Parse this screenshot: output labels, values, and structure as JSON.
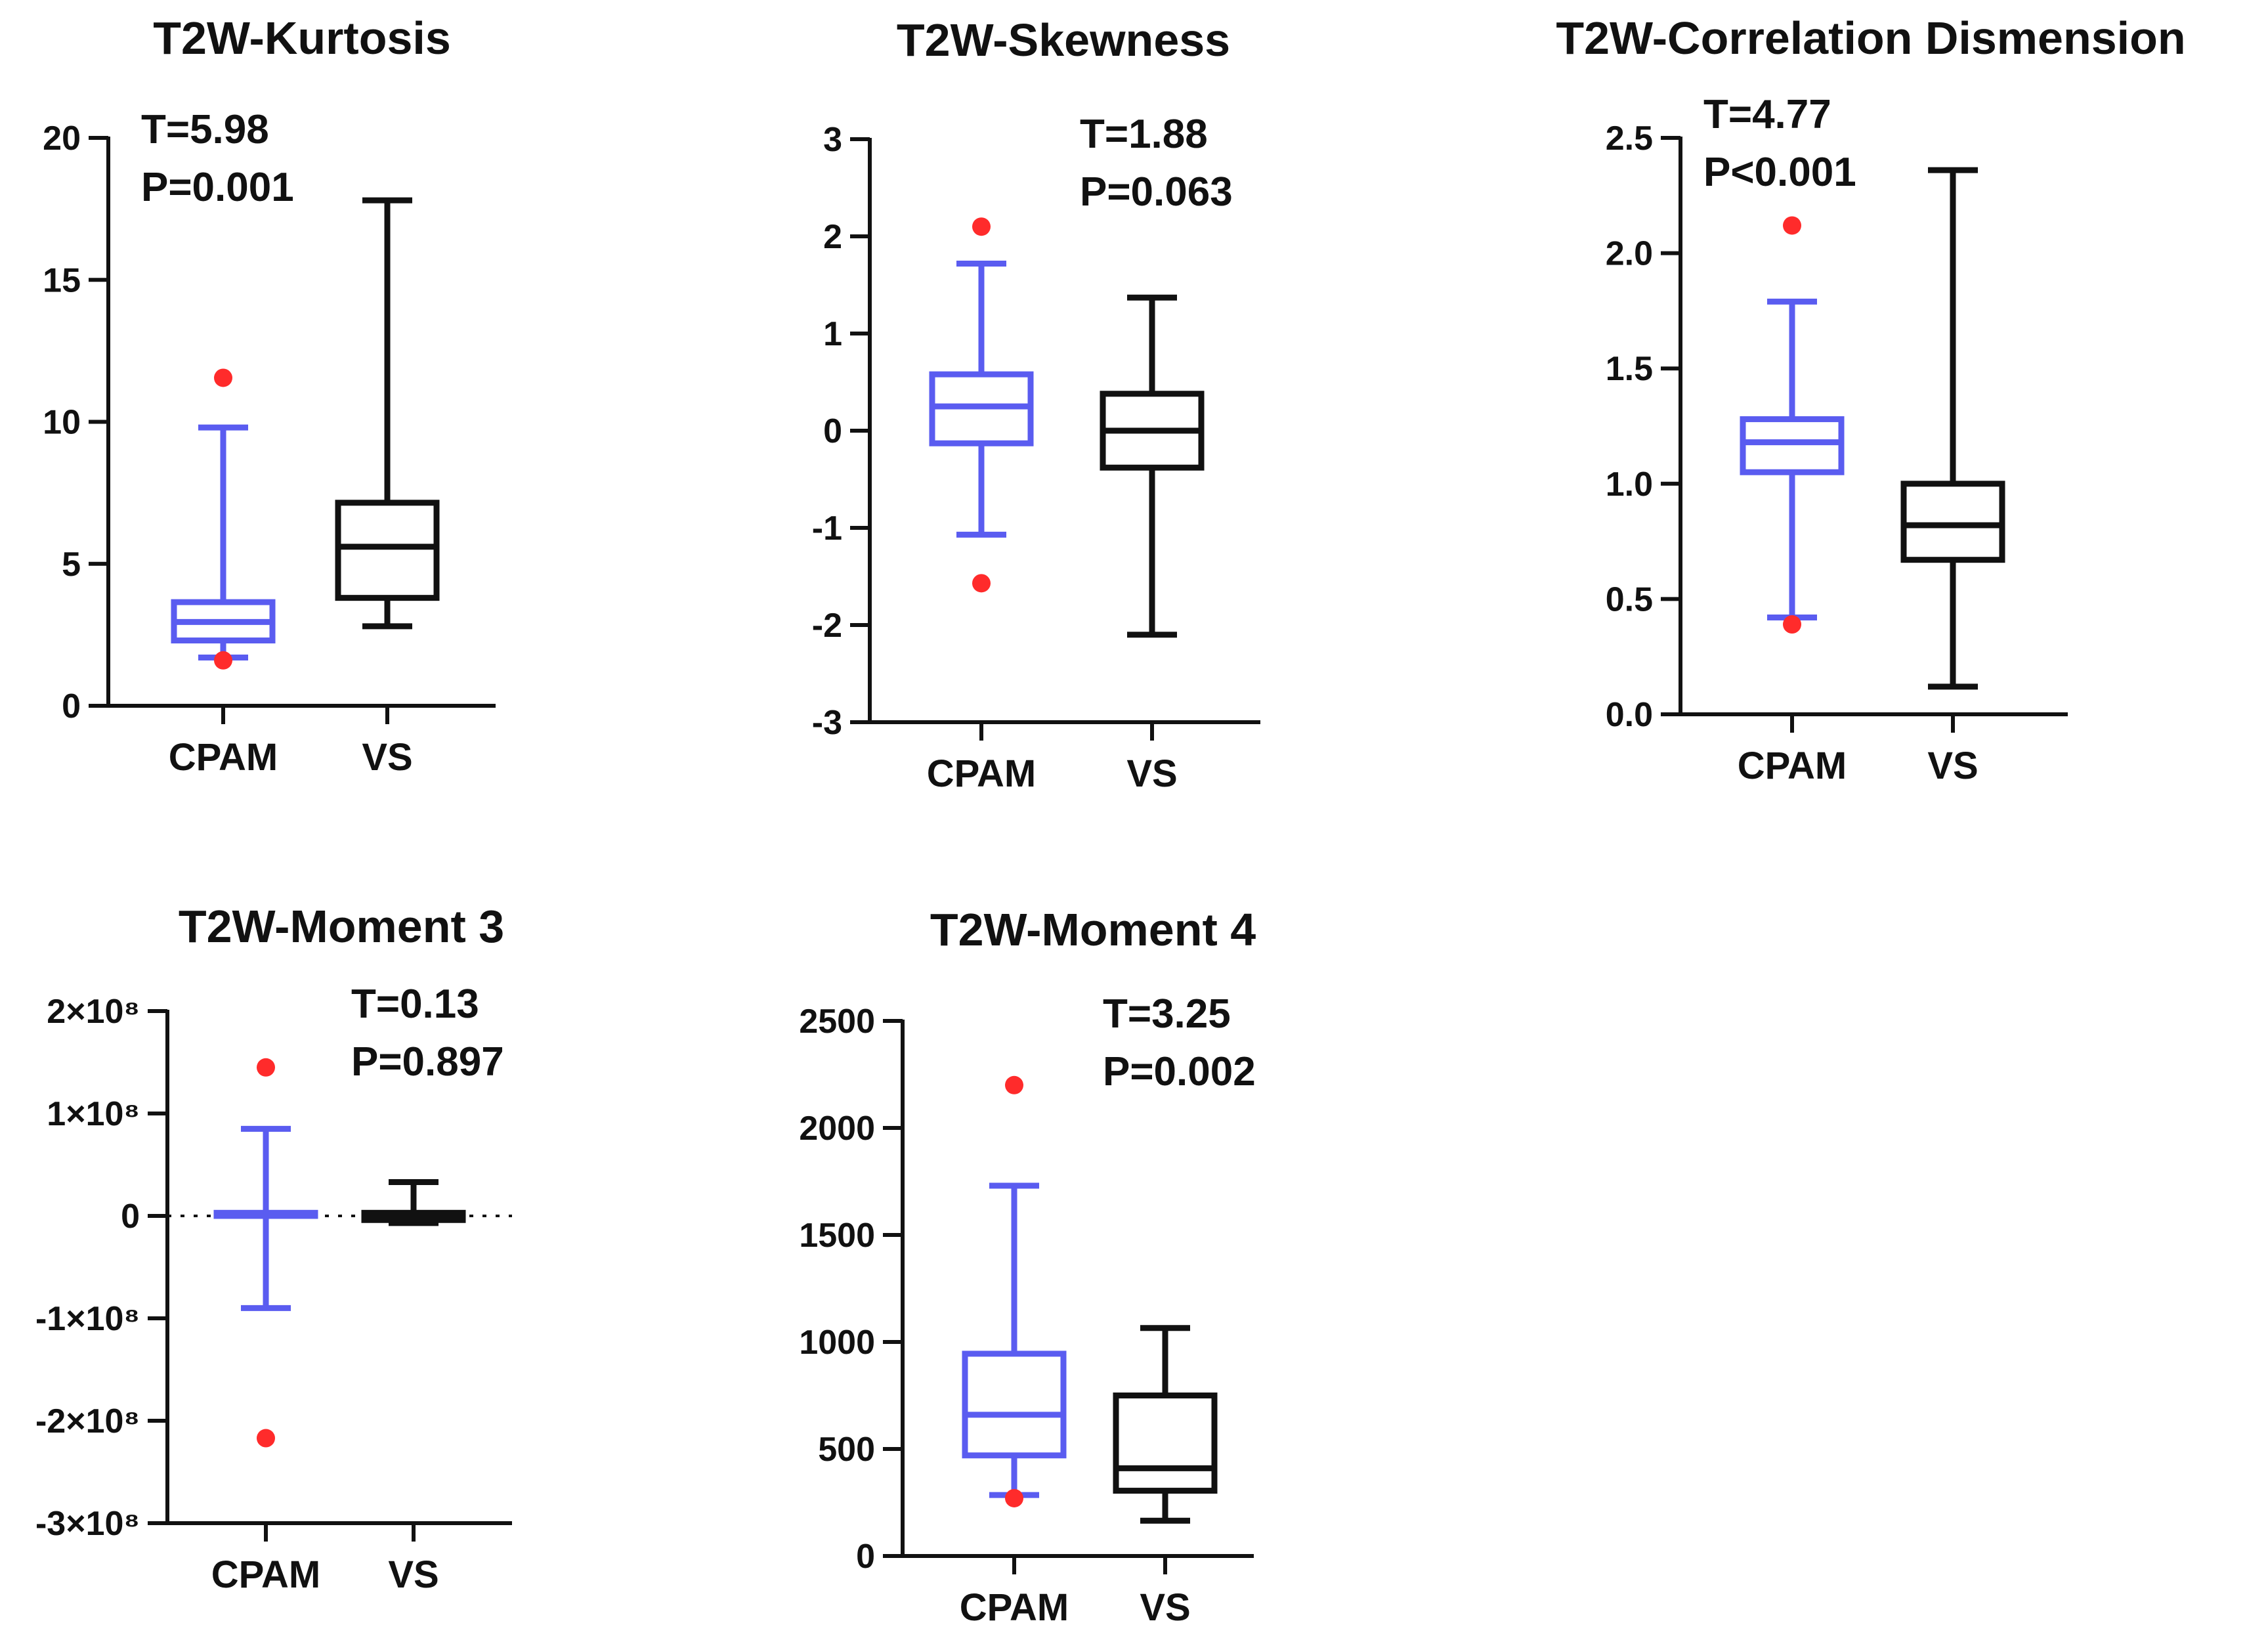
{
  "colors": {
    "cpam": "#5a5cf0",
    "vs": "#111111",
    "outlier": "#ff2b2b"
  },
  "chart_data": [
    {
      "type": "box",
      "title": "T2W-Kurtosis",
      "categories": [
        "CPAM",
        "VS"
      ],
      "ylim": [
        0,
        20
      ],
      "yticks": [
        0,
        5,
        10,
        15,
        20
      ],
      "ytick_labels": [
        "0",
        "5",
        "10",
        "15",
        "20"
      ],
      "stats": {
        "t": "T=5.98",
        "p": "P=0.001"
      },
      "series": [
        {
          "name": "CPAM",
          "min": 1.7,
          "q1": 2.3,
          "median": 2.95,
          "q3": 3.65,
          "max": 9.8,
          "outliers": [
            11.55,
            1.6
          ]
        },
        {
          "name": "VS",
          "min": 2.8,
          "q1": 3.8,
          "median": 5.6,
          "q3": 7.15,
          "max": 17.8,
          "outliers": []
        }
      ]
    },
    {
      "type": "box",
      "title": "T2W-Skewness",
      "categories": [
        "CPAM",
        "VS"
      ],
      "ylim": [
        -3,
        3
      ],
      "yticks": [
        -3,
        -2,
        -1,
        0,
        1,
        2,
        3
      ],
      "ytick_labels": [
        "-3",
        "-2",
        "-1",
        "0",
        "1",
        "2",
        "3"
      ],
      "stats": {
        "t": "T=1.88",
        "p": "P=0.063"
      },
      "series": [
        {
          "name": "CPAM",
          "min": -1.07,
          "q1": -0.13,
          "median": 0.25,
          "q3": 0.58,
          "max": 1.72,
          "outliers": [
            2.1,
            -1.57
          ]
        },
        {
          "name": "VS",
          "min": -2.1,
          "q1": -0.38,
          "median": 0.0,
          "q3": 0.38,
          "max": 1.37,
          "outliers": []
        }
      ]
    },
    {
      "type": "box",
      "title": "T2W-Correlation Dismension",
      "categories": [
        "CPAM",
        "VS"
      ],
      "ylim": [
        0,
        2.5
      ],
      "yticks": [
        0,
        0.5,
        1.0,
        1.5,
        2.0,
        2.5
      ],
      "ytick_labels": [
        "0.0",
        "0.5",
        "1.0",
        "1.5",
        "2.0",
        "2.5"
      ],
      "stats": {
        "t": "T=4.77",
        "p": "P<0.001"
      },
      "series": [
        {
          "name": "CPAM",
          "min": 0.42,
          "q1": 1.05,
          "median": 1.18,
          "q3": 1.28,
          "max": 1.79,
          "outliers": [
            2.12,
            0.39
          ]
        },
        {
          "name": "VS",
          "min": 0.12,
          "q1": 0.67,
          "median": 0.82,
          "q3": 1.0,
          "max": 2.36,
          "outliers": []
        }
      ]
    },
    {
      "type": "box",
      "title": "T2W-Moment 3",
      "categories": [
        "CPAM",
        "VS"
      ],
      "ylim": [
        -300000000,
        200000000
      ],
      "yticks": [
        -300000000,
        -200000000,
        -100000000,
        0,
        100000000,
        200000000
      ],
      "ytick_labels": [
        "-3×10⁸",
        "-2×10⁸",
        "-1×10⁸",
        "0",
        "1×10⁸",
        "2×10⁸"
      ],
      "zero_line": true,
      "stats": {
        "t": "T=0.13",
        "p": "P=0.897"
      },
      "series": [
        {
          "name": "CPAM",
          "min": -90000000,
          "q1": 0,
          "median": 2000000,
          "q3": 3000000,
          "max": 85000000,
          "outliers": [
            145000000,
            -217000000
          ]
        },
        {
          "name": "VS",
          "min": -7000000,
          "q1": -4000000,
          "median": 0,
          "q3": 3000000,
          "max": 33000000,
          "outliers": []
        }
      ]
    },
    {
      "type": "box",
      "title": "T2W-Moment 4",
      "categories": [
        "CPAM",
        "VS"
      ],
      "ylim": [
        0,
        2500
      ],
      "yticks": [
        0,
        500,
        1000,
        1500,
        2000,
        2500
      ],
      "ytick_labels": [
        "0",
        "500",
        "1000",
        "1500",
        "2000",
        "2500"
      ],
      "stats": {
        "t": "T=3.25",
        "p": "P=0.002"
      },
      "series": [
        {
          "name": "CPAM",
          "min": 285,
          "q1": 470,
          "median": 660,
          "q3": 945,
          "max": 1730,
          "outliers": [
            2200,
            270
          ]
        },
        {
          "name": "VS",
          "min": 165,
          "q1": 305,
          "median": 410,
          "q3": 750,
          "max": 1065,
          "outliers": []
        }
      ]
    }
  ]
}
